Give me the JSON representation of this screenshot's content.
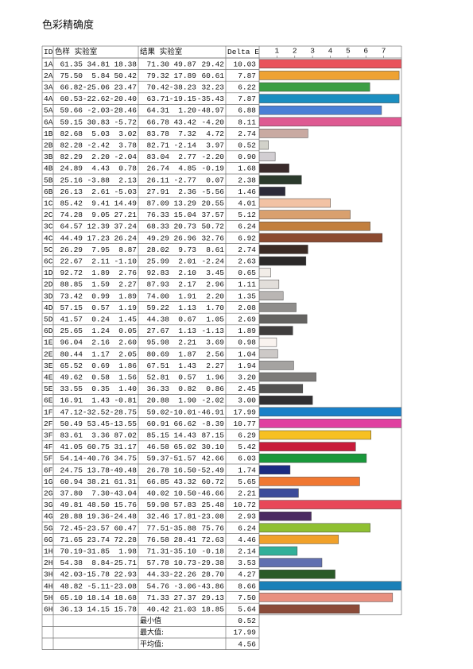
{
  "title": "色彩精确度",
  "table": {
    "header": {
      "id": "ID",
      "sample": "色样 实验室",
      "result": "结果 实验室",
      "delta_e": "Delta E"
    },
    "axis": {
      "xlim": [
        0,
        8
      ],
      "xticks": [
        1,
        2,
        3,
        4,
        5,
        6,
        7
      ]
    },
    "rows": [
      {
        "id": "1A",
        "sample": [
          "61.35",
          "34.81",
          "18.38"
        ],
        "result": [
          "71.30",
          "49.87",
          "29.42"
        ],
        "delta_e": "10.03",
        "color": "#e9525c"
      },
      {
        "id": "2A",
        "sample": [
          "75.50",
          "5.84",
          "50.42"
        ],
        "result": [
          "79.32",
          "17.89",
          "60.61"
        ],
        "delta_e": "7.87",
        "color": "#eea233"
      },
      {
        "id": "3A",
        "sample": [
          "66.82",
          "-25.06",
          "23.47"
        ],
        "result": [
          "70.42",
          "-38.23",
          "32.23"
        ],
        "delta_e": "6.22",
        "color": "#3c9e44"
      },
      {
        "id": "4A",
        "sample": [
          "60.53",
          "-22.62",
          "-20.40"
        ],
        "result": [
          "63.71",
          "-19.15",
          "-35.43"
        ],
        "delta_e": "7.87",
        "color": "#1b8ec0"
      },
      {
        "id": "5A",
        "sample": [
          "59.66",
          "-2.03",
          "-28.46"
        ],
        "result": [
          "64.31",
          "1.20",
          "-48.97"
        ],
        "delta_e": "6.88",
        "color": "#4a80d6"
      },
      {
        "id": "6A",
        "sample": [
          "59.15",
          "30.83",
          "-5.72"
        ],
        "result": [
          "66.78",
          "43.42",
          "-4.20"
        ],
        "delta_e": "8.11",
        "color": "#de5a92"
      },
      {
        "id": "1B",
        "sample": [
          "82.68",
          "5.03",
          "3.02"
        ],
        "result": [
          "83.78",
          "7.32",
          "4.72"
        ],
        "delta_e": "2.74",
        "color": "#c9aaa2"
      },
      {
        "id": "2B",
        "sample": [
          "82.28",
          "-2.42",
          "3.78"
        ],
        "result": [
          "82.71",
          "-2.14",
          "3.97"
        ],
        "delta_e": "0.52",
        "color": "#d2d2ca"
      },
      {
        "id": "3B",
        "sample": [
          "82.29",
          "2.20",
          "-2.04"
        ],
        "result": [
          "83.04",
          "2.77",
          "-2.20"
        ],
        "delta_e": "0.90",
        "color": "#d2ced2"
      },
      {
        "id": "4B",
        "sample": [
          "24.89",
          "4.43",
          "0.78"
        ],
        "result": [
          "26.74",
          "4.85",
          "-0.19"
        ],
        "delta_e": "1.68",
        "color": "#3a2b2b"
      },
      {
        "id": "5B",
        "sample": [
          "25.16",
          "-3.88",
          "2.13"
        ],
        "result": [
          "26.11",
          "-2.77",
          "0.07"
        ],
        "delta_e": "2.38",
        "color": "#2b3a2c"
      },
      {
        "id": "6B",
        "sample": [
          "26.13",
          "2.61",
          "-5.03"
        ],
        "result": [
          "27.91",
          "2.36",
          "-5.56"
        ],
        "delta_e": "1.46",
        "color": "#2c2b3a"
      },
      {
        "id": "1C",
        "sample": [
          "85.42",
          "9.41",
          "14.49"
        ],
        "result": [
          "87.09",
          "13.29",
          "20.55"
        ],
        "delta_e": "4.01",
        "color": "#f2c2a4"
      },
      {
        "id": "2C",
        "sample": [
          "74.28",
          "9.05",
          "27.21"
        ],
        "result": [
          "76.33",
          "15.04",
          "37.57"
        ],
        "delta_e": "5.12",
        "color": "#d9a06e"
      },
      {
        "id": "3C",
        "sample": [
          "64.57",
          "12.39",
          "37.24"
        ],
        "result": [
          "68.33",
          "20.73",
          "50.72"
        ],
        "delta_e": "6.24",
        "color": "#c27f3e"
      },
      {
        "id": "4C",
        "sample": [
          "44.49",
          "17.23",
          "26.24"
        ],
        "result": [
          "49.29",
          "26.96",
          "32.76"
        ],
        "delta_e": "6.92",
        "color": "#8c4a30"
      },
      {
        "id": "5C",
        "sample": [
          "26.29",
          "7.95",
          "8.87"
        ],
        "result": [
          "28.02",
          "9.73",
          "8.61"
        ],
        "delta_e": "2.74",
        "color": "#3b2b25"
      },
      {
        "id": "6C",
        "sample": [
          "22.67",
          "2.11",
          "-1.10"
        ],
        "result": [
          "25.99",
          "2.01",
          "-2.24"
        ],
        "delta_e": "2.63",
        "color": "#2b2929"
      },
      {
        "id": "1D",
        "sample": [
          "92.72",
          "1.89",
          "2.76"
        ],
        "result": [
          "92.83",
          "2.10",
          "3.45"
        ],
        "delta_e": "0.65",
        "color": "#f2ede8"
      },
      {
        "id": "2D",
        "sample": [
          "88.85",
          "1.59",
          "2.27"
        ],
        "result": [
          "87.93",
          "2.17",
          "2.96"
        ],
        "delta_e": "1.11",
        "color": "#e2deda"
      },
      {
        "id": "3D",
        "sample": [
          "73.42",
          "0.99",
          "1.89"
        ],
        "result": [
          "74.00",
          "1.91",
          "2.20"
        ],
        "delta_e": "1.35",
        "color": "#b9b5b3"
      },
      {
        "id": "4D",
        "sample": [
          "57.15",
          "0.57",
          "1.19"
        ],
        "result": [
          "59.22",
          "1.13",
          "1.70"
        ],
        "delta_e": "2.08",
        "color": "#8f8d8b"
      },
      {
        "id": "5D",
        "sample": [
          "41.57",
          "0.24",
          "1.45"
        ],
        "result": [
          "44.38",
          "0.67",
          "1.05"
        ],
        "delta_e": "2.69",
        "color": "#646361"
      },
      {
        "id": "6D",
        "sample": [
          "25.65",
          "1.24",
          "0.05"
        ],
        "result": [
          "27.67",
          "1.13",
          "-1.13"
        ],
        "delta_e": "1.89",
        "color": "#3f3d3d"
      },
      {
        "id": "1E",
        "sample": [
          "96.04",
          "2.16",
          "2.60"
        ],
        "result": [
          "95.98",
          "2.21",
          "3.69"
        ],
        "delta_e": "0.98",
        "color": "#f9f3ef"
      },
      {
        "id": "2E",
        "sample": [
          "80.44",
          "1.17",
          "2.05"
        ],
        "result": [
          "80.69",
          "1.87",
          "2.56"
        ],
        "delta_e": "1.04",
        "color": "#cdc9c7"
      },
      {
        "id": "3E",
        "sample": [
          "65.52",
          "0.69",
          "1.86"
        ],
        "result": [
          "67.51",
          "1.43",
          "2.27"
        ],
        "delta_e": "1.94",
        "color": "#a5a3a1"
      },
      {
        "id": "4E",
        "sample": [
          "49.62",
          "0.58",
          "1.56"
        ],
        "result": [
          "52.81",
          "0.57",
          "1.96"
        ],
        "delta_e": "3.20",
        "color": "#7d7b79"
      },
      {
        "id": "5E",
        "sample": [
          "33.55",
          "0.35",
          "1.40"
        ],
        "result": [
          "36.33",
          "0.82",
          "0.86"
        ],
        "delta_e": "2.45",
        "color": "#535251"
      },
      {
        "id": "6E",
        "sample": [
          "16.91",
          "1.43",
          "-0.81"
        ],
        "result": [
          "20.88",
          "1.90",
          "-2.02"
        ],
        "delta_e": "3.00",
        "color": "#312f31"
      },
      {
        "id": "1F",
        "sample": [
          "47.12",
          "-32.52",
          "-28.75"
        ],
        "result": [
          "59.02",
          "-10.01",
          "-46.91"
        ],
        "delta_e": "17.99",
        "color": "#1a80c8"
      },
      {
        "id": "2F",
        "sample": [
          "50.49",
          "53.45",
          "-13.55"
        ],
        "result": [
          "60.91",
          "66.62",
          "-8.39"
        ],
        "delta_e": "10.77",
        "color": "#e040a0"
      },
      {
        "id": "3F",
        "sample": [
          "83.61",
          "3.36",
          "87.02"
        ],
        "result": [
          "85.15",
          "14.43",
          "87.15"
        ],
        "delta_e": "6.29",
        "color": "#f7c022"
      },
      {
        "id": "4F",
        "sample": [
          "41.05",
          "60.75",
          "31.17"
        ],
        "result": [
          "46.58",
          "65.02",
          "30.10"
        ],
        "delta_e": "5.42",
        "color": "#c81b3b"
      },
      {
        "id": "5F",
        "sample": [
          "54.14",
          "-40.76",
          "34.75"
        ],
        "result": [
          "59.37",
          "-51.57",
          "42.66"
        ],
        "delta_e": "6.03",
        "color": "#19983b"
      },
      {
        "id": "6F",
        "sample": [
          "24.75",
          "13.78",
          "-49.48"
        ],
        "result": [
          "26.78",
          "16.50",
          "-52.49"
        ],
        "delta_e": "1.74",
        "color": "#1b2b82"
      },
      {
        "id": "1G",
        "sample": [
          "60.94",
          "38.21",
          "61.31"
        ],
        "result": [
          "66.85",
          "43.32",
          "60.72"
        ],
        "delta_e": "5.65",
        "color": "#f07832"
      },
      {
        "id": "2G",
        "sample": [
          "37.80",
          "7.30",
          "-43.04"
        ],
        "result": [
          "40.02",
          "10.50",
          "-46.66"
        ],
        "delta_e": "2.21",
        "color": "#3b4b9a"
      },
      {
        "id": "3G",
        "sample": [
          "49.81",
          "48.50",
          "15.76"
        ],
        "result": [
          "59.98",
          "57.83",
          "25.48"
        ],
        "delta_e": "10.72",
        "color": "#e84858"
      },
      {
        "id": "4G",
        "sample": [
          "28.88",
          "19.36",
          "-24.48"
        ],
        "result": [
          "32.46",
          "17.81",
          "-23.08"
        ],
        "delta_e": "2.93",
        "color": "#4b2b62"
      },
      {
        "id": "5G",
        "sample": [
          "72.45",
          "-23.57",
          "60.47"
        ],
        "result": [
          "77.51",
          "-35.88",
          "75.76"
        ],
        "delta_e": "6.24",
        "color": "#8fc032"
      },
      {
        "id": "6G",
        "sample": [
          "71.65",
          "23.74",
          "72.28"
        ],
        "result": [
          "76.58",
          "28.41",
          "72.63"
        ],
        "delta_e": "4.46",
        "color": "#f0a12a"
      },
      {
        "id": "1H",
        "sample": [
          "70.19",
          "-31.85",
          "1.98"
        ],
        "result": [
          "71.31",
          "-35.10",
          "-0.18"
        ],
        "delta_e": "2.14",
        "color": "#31b099"
      },
      {
        "id": "2H",
        "sample": [
          "54.38",
          "8.84",
          "-25.71"
        ],
        "result": [
          "57.78",
          "10.73",
          "-29.38"
        ],
        "delta_e": "3.53",
        "color": "#6170b0"
      },
      {
        "id": "3H",
        "sample": [
          "42.03",
          "-15.78",
          "22.93"
        ],
        "result": [
          "44.33",
          "-22.26",
          "28.70"
        ],
        "delta_e": "4.27",
        "color": "#2b5b29"
      },
      {
        "id": "4H",
        "sample": [
          "48.82",
          "-5.11",
          "-23.08"
        ],
        "result": [
          "54.76",
          "-3.06",
          "-43.86"
        ],
        "delta_e": "8.66",
        "color": "#1b80b8"
      },
      {
        "id": "5H",
        "sample": [
          "65.10",
          "18.14",
          "18.68"
        ],
        "result": [
          "71.33",
          "27.37",
          "29.13"
        ],
        "delta_e": "7.50",
        "color": "#e89080"
      },
      {
        "id": "6H",
        "sample": [
          "36.13",
          "14.15",
          "15.78"
        ],
        "result": [
          "40.42",
          "21.03",
          "18.85"
        ],
        "delta_e": "5.64",
        "color": "#8b4b39"
      }
    ],
    "summary": [
      {
        "label": "最小值",
        "value": "0.52"
      },
      {
        "label": "最大值:",
        "value": "17.99"
      },
      {
        "label": "平均值:",
        "value": "4.56"
      }
    ]
  }
}
